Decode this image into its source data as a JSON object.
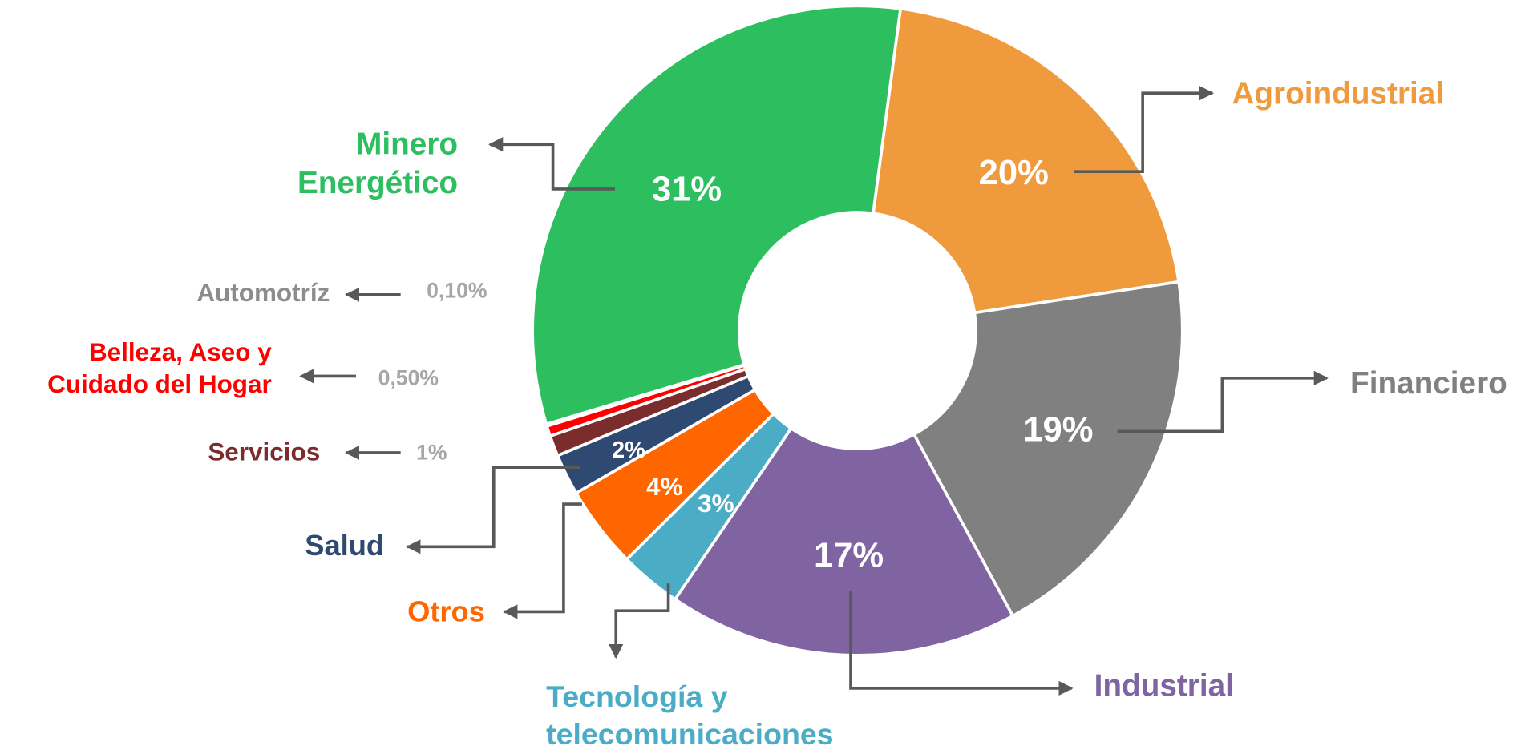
{
  "chart_data": {
    "type": "donut",
    "categories": [
      "Agroindustrial",
      "Financiero",
      "Industrial",
      "Tecnología y telecomunicaciones",
      "Otros",
      "Salud",
      "Servicios",
      "Belleza, Aseo y Cuidado del Hogar",
      "Automotríz",
      "Minero Energético"
    ],
    "values": [
      20,
      19,
      17,
      3,
      4,
      2,
      1,
      0.5,
      0.1,
      31
    ],
    "value_labels": [
      "20%",
      "19%",
      "17%",
      "3%",
      "4%",
      "2%",
      "1%",
      "0,50%",
      "0,10%",
      "31%"
    ],
    "colors": [
      "#f09a3e",
      "#808080",
      "#8064a2",
      "#4bacc6",
      "#ff6600",
      "#2e4a72",
      "#7b2c2c",
      "#ff0000",
      "#8c8c8c",
      "#2dbe60"
    ]
  }
}
